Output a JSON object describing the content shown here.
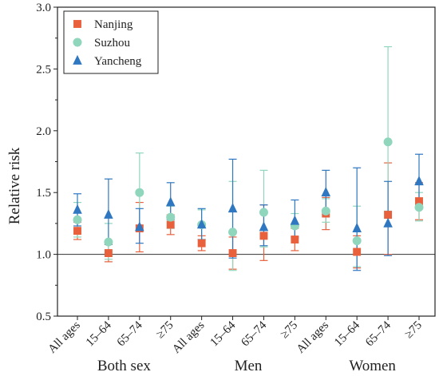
{
  "chart_data": {
    "type": "scatter",
    "ylabel": "Relative risk",
    "ylim": [
      0.5,
      3.0
    ],
    "yticks": [
      "0.5",
      "1.0",
      "1.5",
      "2.0",
      "2.5",
      "3.0"
    ],
    "reference_line": 1.0,
    "categories": [
      "All ages",
      "15–64",
      "65–74",
      "≥75",
      "All ages",
      "15–64",
      "65–74",
      "≥75",
      "All ages",
      "15–64",
      "65–74",
      "≥75"
    ],
    "groups": [
      {
        "label": "Both sex",
        "start": 0,
        "end": 3
      },
      {
        "label": "Men",
        "start": 4,
        "end": 7
      },
      {
        "label": "Women",
        "start": 8,
        "end": 11
      }
    ],
    "legend_position": "top-left",
    "series": [
      {
        "name": "Nanjing",
        "marker": "square",
        "color": "#e8603c",
        "values": [
          1.19,
          1.01,
          1.21,
          1.24,
          1.09,
          1.01,
          1.15,
          1.12,
          1.33,
          1.02,
          1.32,
          1.43
        ],
        "lower": [
          1.12,
          0.94,
          1.02,
          1.16,
          1.03,
          0.88,
          0.95,
          1.03,
          1.2,
          0.89,
          1.0,
          1.28
        ],
        "upper": [
          1.26,
          1.08,
          1.42,
          1.32,
          1.15,
          1.14,
          1.4,
          1.21,
          1.46,
          1.15,
          1.74,
          1.58
        ]
      },
      {
        "name": "Suzhou",
        "marker": "circle",
        "color": "#8fd6bd",
        "values": [
          1.28,
          1.1,
          1.5,
          1.3,
          1.24,
          1.18,
          1.34,
          1.23,
          1.35,
          1.11,
          1.91,
          1.38
        ],
        "lower": [
          1.14,
          0.96,
          1.23,
          1.21,
          1.12,
          0.87,
          1.06,
          1.13,
          1.26,
          0.9,
          1.35,
          1.27
        ],
        "upper": [
          1.42,
          1.25,
          1.82,
          1.39,
          1.36,
          1.59,
          1.68,
          1.33,
          1.45,
          1.39,
          2.68,
          1.5
        ]
      },
      {
        "name": "Yancheng",
        "marker": "triangle",
        "color": "#2f77c0",
        "values": [
          1.36,
          1.32,
          1.22,
          1.42,
          1.24,
          1.37,
          1.22,
          1.27,
          1.5,
          1.21,
          1.25,
          1.59
        ],
        "lower": [
          1.23,
          1.08,
          1.09,
          1.28,
          1.12,
          0.97,
          1.07,
          1.14,
          1.34,
          0.87,
          0.99,
          1.39
        ],
        "upper": [
          1.49,
          1.61,
          1.37,
          1.58,
          1.37,
          1.77,
          1.4,
          1.44,
          1.68,
          1.7,
          1.59,
          1.81
        ]
      }
    ]
  }
}
